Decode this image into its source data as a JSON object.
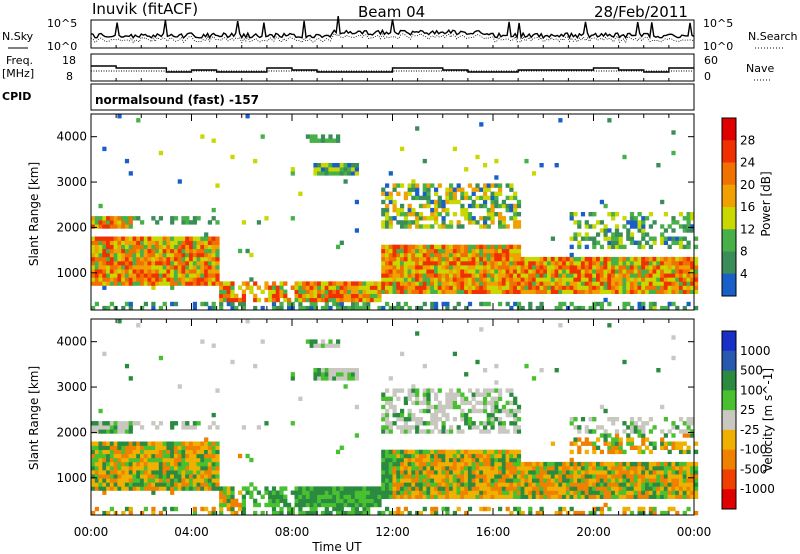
{
  "header": {
    "station": "Inuvik (fitACF)",
    "beam": "Beam 04",
    "date": "28/Feb/2011"
  },
  "noise_panel": {
    "left_label": "N.Sky",
    "right_label": "N.Search",
    "left_ticks": [
      "10^5",
      "10^0"
    ],
    "right_ticks": [
      "10^5",
      "10^0"
    ]
  },
  "freq_panel": {
    "left_label_1": "Freq.",
    "left_label_2": "[MHz]",
    "right_label": "Nave",
    "left_ticks": [
      "18",
      "8"
    ],
    "right_ticks": [
      "60",
      "0"
    ]
  },
  "cpid": {
    "label": "CPID",
    "program": "normalsound (fast) -157"
  },
  "colors": {
    "power": [
      "#1e10e6",
      "#1a5fc8",
      "#3a8c58",
      "#48b048",
      "#c8d800",
      "#f0a000",
      "#f07000",
      "#f03000",
      "#e00000"
    ],
    "velocity": [
      "#e00000",
      "#f04000",
      "#f08000",
      "#f0b000",
      "#c8c8c0",
      "#48c030",
      "#2a8a40",
      "#2858b0",
      "#1830c8"
    ]
  },
  "chart_data": [
    {
      "type": "heatmap",
      "name": "power",
      "ylabel": "Slant Range [km]",
      "xlim": [
        "00:00",
        "24:00"
      ],
      "ylim": [
        180,
        4500
      ],
      "y_ticks": [
        1000,
        2000,
        3000,
        4000
      ],
      "colorbar_label": "Power [dB]",
      "colorbar_ticks": [
        "28",
        "24",
        "20",
        "16",
        "12",
        "8",
        "4"
      ],
      "colorbar_range": [
        0,
        32
      ]
    },
    {
      "type": "heatmap",
      "name": "velocity",
      "ylabel": "Slant Range [km]",
      "xlabel": "Time UT",
      "xlim": [
        "00:00",
        "24:00"
      ],
      "ylim": [
        180,
        4500
      ],
      "y_ticks": [
        1000,
        2000,
        3000,
        4000
      ],
      "x_ticks": [
        "00:00",
        "04:00",
        "08:00",
        "12:00",
        "16:00",
        "20:00",
        "00:00"
      ],
      "colorbar_label": "Velocity [m s^-1]",
      "colorbar_ticks": [
        "1000",
        "500",
        "100",
        "25",
        "-25",
        "-100",
        "-500",
        "-1000"
      ]
    }
  ]
}
